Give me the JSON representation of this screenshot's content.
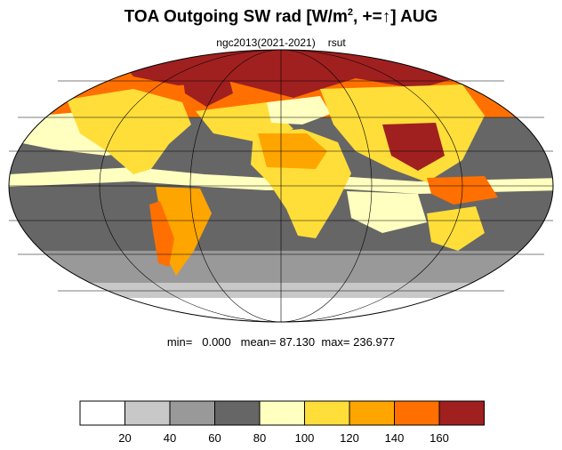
{
  "title": {
    "prefix": "TOA Outgoing SW rad [W/m",
    "superscript": "2",
    "suffix": ", +=↑] AUG"
  },
  "subtitle": {
    "run": "ngc2013(2021-2021)",
    "variable": "rsut"
  },
  "stats": {
    "min_label": "min=",
    "min_value": "0.000",
    "mean_label": "mean=",
    "mean_value": "87.130",
    "max_label": "max=",
    "max_value": "236.977"
  },
  "colorbar": {
    "colors": [
      "#ffffff",
      "#c8c8c8",
      "#999999",
      "#666666",
      "#ffffc0",
      "#ffde3a",
      "#ffa500",
      "#ff7000",
      "#a02020"
    ],
    "tick_labels": [
      "20",
      "40",
      "60",
      "80",
      "100",
      "120",
      "140",
      "160"
    ]
  },
  "map": {
    "projection": "mollweide",
    "ocean_base_color": "#666666"
  }
}
